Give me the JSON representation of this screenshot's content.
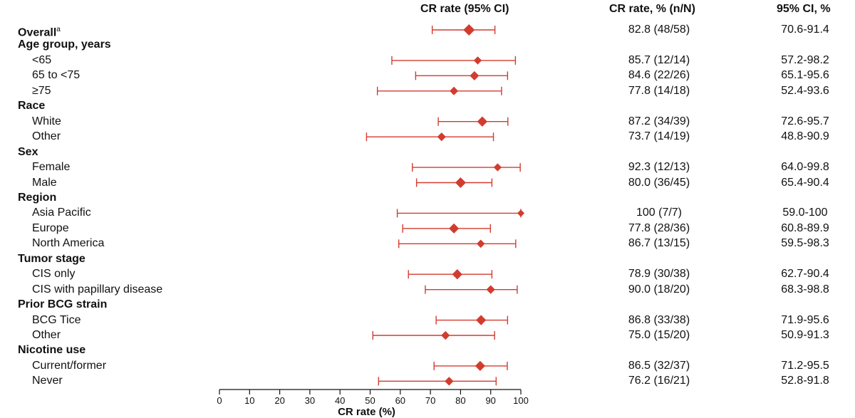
{
  "headers": {
    "forest": "CR rate (95% CI)",
    "rate": "CR rate, % (n/N)",
    "ci": "95% CI, %"
  },
  "colors": {
    "marker": "#d23c2f",
    "axis": "#111111"
  },
  "chart_data": {
    "type": "forest",
    "xlabel": "CR rate (%)",
    "xlim": [
      0,
      100
    ],
    "xticks": [
      "0",
      "10",
      "20",
      "30",
      "40",
      "50",
      "60",
      "70",
      "80",
      "90",
      "100"
    ],
    "rows": [
      {
        "kind": "item",
        "indent": 0,
        "label": "Overall",
        "sup": "a",
        "bold": true,
        "est": 82.8,
        "lo": 70.6,
        "hi": 91.4,
        "n": 58,
        "rate_text": "82.8 (48/58)",
        "ci_text": "70.6-91.4"
      },
      {
        "kind": "group",
        "label": "Age group, years"
      },
      {
        "kind": "item",
        "indent": 1,
        "label": "<65",
        "est": 85.7,
        "lo": 57.2,
        "hi": 98.2,
        "n": 14,
        "rate_text": "85.7 (12/14)",
        "ci_text": "57.2-98.2"
      },
      {
        "kind": "item",
        "indent": 1,
        "label": "65 to <75",
        "est": 84.6,
        "lo": 65.1,
        "hi": 95.6,
        "n": 26,
        "rate_text": "84.6 (22/26)",
        "ci_text": "65.1-95.6"
      },
      {
        "kind": "item",
        "indent": 1,
        "label": "≥75",
        "est": 77.8,
        "lo": 52.4,
        "hi": 93.6,
        "n": 18,
        "rate_text": "77.8 (14/18)",
        "ci_text": "52.4-93.6"
      },
      {
        "kind": "group",
        "label": "Race"
      },
      {
        "kind": "item",
        "indent": 1,
        "label": "White",
        "est": 87.2,
        "lo": 72.6,
        "hi": 95.7,
        "n": 39,
        "rate_text": "87.2 (34/39)",
        "ci_text": "72.6-95.7"
      },
      {
        "kind": "item",
        "indent": 1,
        "label": "Other",
        "est": 73.7,
        "lo": 48.8,
        "hi": 90.9,
        "n": 19,
        "rate_text": "73.7 (14/19)",
        "ci_text": "48.8-90.9"
      },
      {
        "kind": "group",
        "label": "Sex"
      },
      {
        "kind": "item",
        "indent": 1,
        "label": "Female",
        "est": 92.3,
        "lo": 64.0,
        "hi": 99.8,
        "n": 13,
        "rate_text": "92.3 (12/13)",
        "ci_text": "64.0-99.8"
      },
      {
        "kind": "item",
        "indent": 1,
        "label": "Male",
        "est": 80.0,
        "lo": 65.4,
        "hi": 90.4,
        "n": 45,
        "rate_text": "80.0 (36/45)",
        "ci_text": "65.4-90.4"
      },
      {
        "kind": "group",
        "label": "Region"
      },
      {
        "kind": "item",
        "indent": 1,
        "label": "Asia Pacific",
        "est": 100,
        "lo": 59.0,
        "hi": 100,
        "n": 7,
        "rate_text": "100 (7/7)",
        "ci_text": "59.0-100"
      },
      {
        "kind": "item",
        "indent": 1,
        "label": "Europe",
        "est": 77.8,
        "lo": 60.8,
        "hi": 89.9,
        "n": 36,
        "rate_text": "77.8 (28/36)",
        "ci_text": "60.8-89.9"
      },
      {
        "kind": "item",
        "indent": 1,
        "label": "North America",
        "est": 86.7,
        "lo": 59.5,
        "hi": 98.3,
        "n": 15,
        "rate_text": "86.7 (13/15)",
        "ci_text": "59.5-98.3"
      },
      {
        "kind": "group",
        "label": "Tumor stage"
      },
      {
        "kind": "item",
        "indent": 1,
        "label": "CIS only",
        "est": 78.9,
        "lo": 62.7,
        "hi": 90.4,
        "n": 38,
        "rate_text": "78.9 (30/38)",
        "ci_text": "62.7-90.4"
      },
      {
        "kind": "item",
        "indent": 1,
        "label": "CIS with papillary disease",
        "est": 90.0,
        "lo": 68.3,
        "hi": 98.8,
        "n": 20,
        "rate_text": "90.0 (18/20)",
        "ci_text": "68.3-98.8"
      },
      {
        "kind": "group",
        "label": "Prior BCG strain"
      },
      {
        "kind": "item",
        "indent": 1,
        "label": "BCG Tice",
        "est": 86.8,
        "lo": 71.9,
        "hi": 95.6,
        "n": 38,
        "rate_text": "86.8 (33/38)",
        "ci_text": "71.9-95.6"
      },
      {
        "kind": "item",
        "indent": 1,
        "label": "Other",
        "est": 75.0,
        "lo": 50.9,
        "hi": 91.3,
        "n": 20,
        "rate_text": "75.0 (15/20)",
        "ci_text": "50.9-91.3"
      },
      {
        "kind": "group",
        "label": "Nicotine use"
      },
      {
        "kind": "item",
        "indent": 1,
        "label": "Current/former",
        "est": 86.5,
        "lo": 71.2,
        "hi": 95.5,
        "n": 37,
        "rate_text": "86.5 (32/37)",
        "ci_text": "71.2-95.5"
      },
      {
        "kind": "item",
        "indent": 1,
        "label": "Never",
        "est": 76.2,
        "lo": 52.8,
        "hi": 91.8,
        "n": 21,
        "rate_text": "76.2 (16/21)",
        "ci_text": "52.8-91.8"
      }
    ]
  }
}
